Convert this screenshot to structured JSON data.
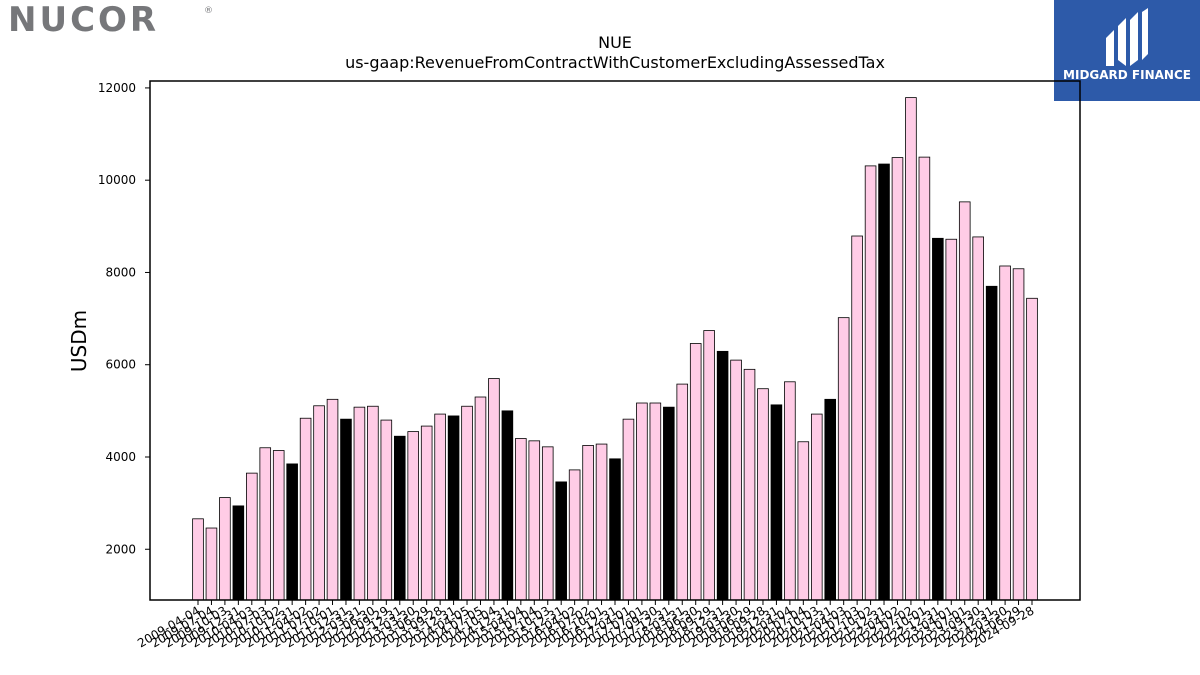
{
  "logos": {
    "left_text": "NUCOR",
    "left_mark": "®",
    "right_text": "MIDGARD FINANCE",
    "right_icon": "midgard-mark-icon"
  },
  "colors": {
    "bar_default": "#ffcce6",
    "bar_highlight": "#000000",
    "bar_edge": "#000000",
    "brand_blue": "#2d5aa9",
    "logo_grey": "#76777a"
  },
  "chart_data": {
    "type": "bar",
    "title": "NUE",
    "subtitle": "us-gaap:RevenueFromContractWithCustomerExcludingAssessedTax",
    "xlabel": "",
    "ylabel": "USDm",
    "ylim": [
      900,
      12150
    ],
    "yticks": [
      2000,
      4000,
      6000,
      8000,
      10000,
      12000
    ],
    "grid": false,
    "legend": "none",
    "categories": [
      "2009-04-04",
      "2009-07-04",
      "2009-10-03",
      "2009-12-31",
      "2010-04-03",
      "2010-07-03",
      "2010-10-02",
      "2010-12-31",
      "2011-04-02",
      "2011-07-02",
      "2011-10-01",
      "2011-12-31",
      "2012-03-31",
      "2012-06-30",
      "2012-09-29",
      "2012-12-31",
      "2013-03-30",
      "2013-06-29",
      "2013-09-28",
      "2013-12-31",
      "2014-04-05",
      "2014-07-05",
      "2014-10-04",
      "2014-12-31",
      "2015-04-04",
      "2015-07-04",
      "2015-10-03",
      "2015-12-31",
      "2016-04-02",
      "2016-07-02",
      "2016-10-01",
      "2016-12-31",
      "2017-04-01",
      "2017-07-01",
      "2017-09-30",
      "2017-12-31",
      "2018-03-31",
      "2018-06-30",
      "2018-09-29",
      "2018-12-31",
      "2019-03-30",
      "2019-06-29",
      "2019-09-28",
      "2019-12-31",
      "2020-04-04",
      "2020-07-04",
      "2020-10-03",
      "2020-12-31",
      "2021-04-03",
      "2021-07-03",
      "2021-10-02",
      "2021-12-31",
      "2022-04-02",
      "2022-07-02",
      "2022-10-01",
      "2022-12-31",
      "2023-04-01",
      "2023-07-01",
      "2023-09-30",
      "2023-12-31",
      "2024-03-30",
      "2024-06-29",
      "2024-09-28"
    ],
    "values": [
      2660,
      2460,
      3120,
      2940,
      3650,
      4200,
      4140,
      3850,
      4840,
      5110,
      5250,
      4820,
      5080,
      5100,
      4800,
      4450,
      4550,
      4670,
      4930,
      4890,
      5100,
      5300,
      5700,
      5000,
      4400,
      4350,
      4220,
      3460,
      3720,
      4250,
      4280,
      3960,
      4820,
      5170,
      5170,
      5080,
      5580,
      6460,
      6740,
      6290,
      6100,
      5900,
      5480,
      5130,
      5630,
      4330,
      4930,
      5250,
      7020,
      8790,
      10310,
      10350,
      10490,
      11790,
      10500,
      8740,
      8720,
      9530,
      8770,
      7700,
      8140,
      8080,
      7440
    ],
    "highlight": [
      false,
      false,
      false,
      true,
      false,
      false,
      false,
      true,
      false,
      false,
      false,
      true,
      false,
      false,
      false,
      true,
      false,
      false,
      false,
      true,
      false,
      false,
      false,
      true,
      false,
      false,
      false,
      true,
      false,
      false,
      false,
      true,
      false,
      false,
      false,
      true,
      false,
      false,
      false,
      true,
      false,
      false,
      false,
      true,
      false,
      false,
      false,
      true,
      false,
      false,
      false,
      true,
      false,
      false,
      false,
      true,
      false,
      false,
      false,
      true,
      false,
      false,
      false
    ]
  }
}
